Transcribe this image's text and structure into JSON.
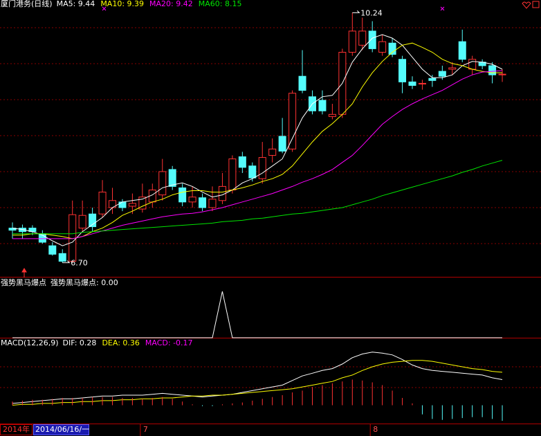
{
  "chart_data": [
    {
      "type": "candlestick",
      "title": "厦门港务(日线)",
      "categories": [
        null,
        null,
        null,
        null,
        null,
        null,
        null,
        null,
        null,
        null,
        null,
        null,
        null,
        "7",
        null,
        null,
        null,
        null,
        null,
        null,
        null,
        null,
        null,
        null,
        null,
        null,
        null,
        null,
        null,
        null,
        null,
        null,
        null,
        null,
        null,
        null,
        "8",
        null,
        null,
        null,
        null,
        null,
        null,
        null,
        null,
        null,
        null,
        null,
        null,
        null
      ],
      "open": [
        7.19,
        7.19,
        7.19,
        7.11,
        6.94,
        6.83,
        6.72,
        7.19,
        7.39,
        7.39,
        7.48,
        7.56,
        7.5,
        7.46,
        7.56,
        7.66,
        8.02,
        7.76,
        7.56,
        7.62,
        7.48,
        7.58,
        7.73,
        8.2,
        8.07,
        7.89,
        8.22,
        8.49,
        8.31,
        9.34,
        9.05,
        9.0,
        8.77,
        8.8,
        9.68,
        9.78,
        9.98,
        9.68,
        9.81,
        9.58,
        9.26,
        9.23,
        9.31,
        9.41,
        9.44,
        9.83,
        9.44,
        9.54,
        9.49,
        9.36
      ],
      "close": [
        7.16,
        7.14,
        7.14,
        6.99,
        6.82,
        6.72,
        7.38,
        7.37,
        7.21,
        7.7,
        7.58,
        7.48,
        7.54,
        7.63,
        7.73,
        7.99,
        7.78,
        7.56,
        7.63,
        7.48,
        7.6,
        7.78,
        8.17,
        8.05,
        7.9,
        8.19,
        8.31,
        8.28,
        9.1,
        9.14,
        8.85,
        8.85,
        8.8,
        9.68,
        9.98,
        9.98,
        9.73,
        9.83,
        9.65,
        9.26,
        9.21,
        9.24,
        9.28,
        9.34,
        9.46,
        9.58,
        9.58,
        9.49,
        9.36,
        9.37
      ],
      "high": [
        7.27,
        7.24,
        7.23,
        7.16,
        6.99,
        6.89,
        7.58,
        7.58,
        7.48,
        7.87,
        7.76,
        7.6,
        7.68,
        7.82,
        7.82,
        8.17,
        8.07,
        7.82,
        7.78,
        7.68,
        7.78,
        7.97,
        8.22,
        8.27,
        8.12,
        8.41,
        8.46,
        8.75,
        9.14,
        9.71,
        9.14,
        9.14,
        8.95,
        9.73,
        10.24,
        10.17,
        10.12,
        9.93,
        9.88,
        9.63,
        9.34,
        9.29,
        9.36,
        9.49,
        9.54,
        10.0,
        9.63,
        9.58,
        9.54,
        9.44
      ],
      "low": [
        7.04,
        7.04,
        7.09,
        6.97,
        6.8,
        6.7,
        6.7,
        7.14,
        7.14,
        7.34,
        7.39,
        7.43,
        7.39,
        7.41,
        7.48,
        7.58,
        7.73,
        7.5,
        7.48,
        7.43,
        7.43,
        7.53,
        7.68,
        7.97,
        7.85,
        7.82,
        8.12,
        8.25,
        8.27,
        9.1,
        8.8,
        8.8,
        8.73,
        8.75,
        9.63,
        9.71,
        9.68,
        9.63,
        9.61,
        9.1,
        9.16,
        9.15,
        9.19,
        9.29,
        9.36,
        9.54,
        9.36,
        9.44,
        9.24,
        9.26
      ],
      "up_color": "#ff3232",
      "down_color": "#54fcfc",
      "ylim": [
        6.5,
        10.42
      ],
      "series": [
        {
          "name": "MA5: 9.44",
          "color": "#ffffff",
          "values": [
            7.19,
            7.17,
            7.14,
            7.09,
            7.01,
            6.94,
            6.99,
            7.14,
            7.24,
            7.34,
            7.48,
            7.56,
            7.58,
            7.6,
            7.66,
            7.76,
            7.8,
            7.83,
            7.78,
            7.7,
            7.63,
            7.66,
            7.73,
            7.83,
            7.89,
            7.97,
            8.07,
            8.17,
            8.46,
            8.75,
            8.95,
            9.05,
            9.07,
            9.24,
            9.54,
            9.73,
            9.88,
            9.93,
            9.88,
            9.78,
            9.61,
            9.44,
            9.32,
            9.32,
            9.36,
            9.49,
            9.55,
            9.54,
            9.51,
            9.44
          ]
        },
        {
          "name": "MA10: 9.39",
          "color": "#ffff00",
          "values": [
            7.09,
            7.09,
            7.11,
            7.11,
            7.09,
            7.07,
            7.04,
            7.07,
            7.14,
            7.19,
            7.27,
            7.37,
            7.43,
            7.5,
            7.56,
            7.6,
            7.66,
            7.7,
            7.72,
            7.72,
            7.7,
            7.7,
            7.73,
            7.76,
            7.8,
            7.85,
            7.89,
            7.95,
            8.07,
            8.24,
            8.41,
            8.56,
            8.67,
            8.8,
            8.95,
            9.19,
            9.39,
            9.55,
            9.68,
            9.78,
            9.81,
            9.75,
            9.68,
            9.58,
            9.52,
            9.49,
            9.44,
            9.41,
            9.39,
            9.39
          ]
        },
        {
          "name": "MA20: 9.42",
          "color": "#ff00ff",
          "values": [
            7.04,
            7.04,
            7.04,
            7.04,
            7.04,
            7.04,
            7.04,
            7.07,
            7.11,
            7.15,
            7.19,
            7.23,
            7.26,
            7.29,
            7.32,
            7.35,
            7.37,
            7.39,
            7.4,
            7.42,
            7.45,
            7.48,
            7.52,
            7.56,
            7.6,
            7.64,
            7.68,
            7.73,
            7.78,
            7.84,
            7.89,
            7.95,
            8.02,
            8.12,
            8.22,
            8.36,
            8.51,
            8.66,
            8.77,
            8.87,
            8.95,
            9.02,
            9.08,
            9.14,
            9.22,
            9.3,
            9.36,
            9.4,
            9.41,
            9.42
          ]
        },
        {
          "name": "MA60: 8.15",
          "color": "#00e600",
          "values": [
            7.11,
            7.11,
            7.11,
            7.11,
            7.11,
            7.11,
            7.11,
            7.13,
            7.14,
            7.15,
            7.16,
            7.17,
            7.18,
            7.19,
            7.2,
            7.21,
            7.22,
            7.23,
            7.24,
            7.25,
            7.26,
            7.28,
            7.29,
            7.3,
            7.32,
            7.33,
            7.35,
            7.37,
            7.39,
            7.4,
            7.42,
            7.44,
            7.46,
            7.48,
            7.52,
            7.56,
            7.6,
            7.65,
            7.69,
            7.73,
            7.77,
            7.81,
            7.85,
            7.89,
            7.93,
            7.98,
            8.02,
            8.07,
            8.11,
            8.15
          ]
        }
      ],
      "annotations": [
        {
          "text": "10.24",
          "value": 10.24
        },
        {
          "text": "6.70",
          "value": 6.7
        }
      ]
    },
    {
      "type": "line",
      "title": "强势黑马爆点",
      "ylim": [
        0,
        1.3
      ],
      "series": [
        {
          "name": "强势黑马爆点: 0.00",
          "color": "#ffffff",
          "values": [
            0,
            0,
            0,
            0,
            0,
            0,
            0,
            0,
            0,
            0,
            0,
            0,
            0,
            0,
            0,
            0,
            0,
            0,
            0,
            0,
            0,
            1,
            0,
            0,
            0,
            0,
            0,
            0,
            0,
            0,
            0,
            0,
            0,
            0,
            0,
            0,
            0,
            0,
            0,
            0,
            0,
            0,
            0,
            0,
            0,
            0,
            0,
            0,
            0,
            0
          ]
        }
      ]
    },
    {
      "type": "macd",
      "title": "MACD(12,26,9)",
      "ylim": [
        -0.2,
        0.73
      ],
      "series": [
        {
          "name": "DIF: 0.28",
          "color": "#ffffff",
          "values": [
            0.02,
            0.03,
            0.04,
            0.05,
            0.06,
            0.07,
            0.07,
            0.08,
            0.09,
            0.1,
            0.1,
            0.11,
            0.11,
            0.11,
            0.12,
            0.13,
            0.12,
            0.11,
            0.1,
            0.09,
            0.1,
            0.11,
            0.12,
            0.14,
            0.16,
            0.18,
            0.2,
            0.22,
            0.27,
            0.32,
            0.35,
            0.38,
            0.4,
            0.45,
            0.52,
            0.56,
            0.58,
            0.57,
            0.55,
            0.5,
            0.44,
            0.4,
            0.38,
            0.37,
            0.36,
            0.35,
            0.34,
            0.33,
            0.3,
            0.28
          ]
        },
        {
          "name": "DEA: 0.36",
          "color": "#ffff00",
          "values": [
            0.0,
            0.01,
            0.01,
            0.02,
            0.02,
            0.03,
            0.03,
            0.04,
            0.04,
            0.05,
            0.05,
            0.06,
            0.06,
            0.07,
            0.07,
            0.08,
            0.08,
            0.09,
            0.1,
            0.1,
            0.11,
            0.11,
            0.12,
            0.13,
            0.14,
            0.15,
            0.16,
            0.17,
            0.18,
            0.2,
            0.22,
            0.24,
            0.26,
            0.3,
            0.33,
            0.38,
            0.42,
            0.45,
            0.47,
            0.48,
            0.49,
            0.49,
            0.48,
            0.46,
            0.44,
            0.42,
            0.4,
            0.39,
            0.37,
            0.36
          ]
        },
        {
          "name": "MACD: -0.17",
          "color": "#ff00ff",
          "up_color": "#ff3232",
          "down_color": "#54fcfc",
          "values": [
            0.04,
            0.05,
            0.06,
            0.06,
            0.07,
            0.08,
            0.08,
            0.08,
            0.09,
            0.09,
            0.09,
            0.08,
            0.08,
            0.07,
            0.08,
            0.09,
            0.07,
            0.04,
            0.01,
            -0.01,
            -0.01,
            0.01,
            0.02,
            0.03,
            0.05,
            0.07,
            0.09,
            0.11,
            0.14,
            0.16,
            0.2,
            0.22,
            0.24,
            0.26,
            0.28,
            0.27,
            0.25,
            0.22,
            0.16,
            0.08,
            0.02,
            -0.1,
            -0.15,
            -0.16,
            -0.15,
            -0.14,
            -0.13,
            -0.13,
            -0.15,
            -0.17
          ]
        }
      ]
    }
  ],
  "date_bar": {
    "year": "2014年",
    "cursor": "2014/06/16/一"
  }
}
